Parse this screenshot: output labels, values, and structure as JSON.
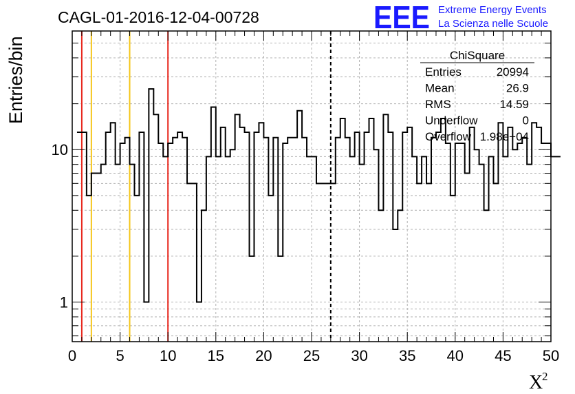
{
  "chart_data": {
    "type": "histogram",
    "title": "CAGL-01-2016-12-04-00728",
    "ylabel": "Entries/bin",
    "xlabel": "X",
    "xlabel_superscript": "2",
    "xlim": [
      0,
      50
    ],
    "ylim": [
      0.55,
      60
    ],
    "log_y": true,
    "grid": true,
    "bin_width": 0.5,
    "x_ticks": [
      0,
      5,
      10,
      15,
      20,
      25,
      30,
      35,
      40,
      45,
      50
    ],
    "y_ticks": [
      1,
      10
    ],
    "bin_edges_start": 0.5,
    "counts": [
      13,
      13,
      5,
      7,
      7,
      8,
      13,
      15,
      8,
      11,
      12,
      8,
      5,
      13,
      1,
      25,
      17,
      11,
      9,
      11,
      12,
      13,
      12,
      6,
      6,
      1,
      4,
      9,
      19,
      9,
      14,
      9,
      10,
      17,
      14,
      13,
      2,
      13,
      15,
      12,
      5,
      12,
      2,
      11,
      12,
      12,
      18,
      12,
      9,
      9,
      6,
      6,
      6,
      6,
      12,
      16,
      12,
      9,
      13,
      8,
      13,
      16,
      10,
      4,
      17,
      13,
      3,
      4,
      13,
      14,
      9,
      6,
      9,
      6,
      12,
      13,
      16,
      11,
      5,
      11,
      11,
      7,
      14,
      10,
      8,
      4,
      9,
      6,
      15,
      9,
      14,
      10,
      11,
      12,
      8,
      15,
      14,
      11,
      11,
      9,
      9
    ],
    "vertical_lines": [
      {
        "x": 1,
        "color": "#e8281e",
        "style": "solid"
      },
      {
        "x": 2,
        "color": "#f5c518",
        "style": "solid"
      },
      {
        "x": 6,
        "color": "#f5c518",
        "style": "solid"
      },
      {
        "x": 10,
        "color": "#e8281e",
        "style": "solid"
      },
      {
        "x": 27,
        "color": "#000000",
        "style": "dashed"
      }
    ],
    "stats_box": {
      "title": "ChiSquare",
      "rows": [
        {
          "label": "Entries",
          "value": "20994"
        },
        {
          "label": "Mean",
          "value": "26.9"
        },
        {
          "label": "RMS",
          "value": "14.59"
        },
        {
          "label": "Underflow",
          "value": "0"
        },
        {
          "label": "Overflow",
          "value": "1.98e+04"
        }
      ]
    }
  },
  "logo": {
    "big": "EEE",
    "line1": "Extreme Energy Events",
    "line2": "La Scienza nelle Scuole"
  },
  "colors": {
    "histogram": "#000000",
    "grid": "#b0b0b0",
    "logo": "#1a1aff"
  }
}
